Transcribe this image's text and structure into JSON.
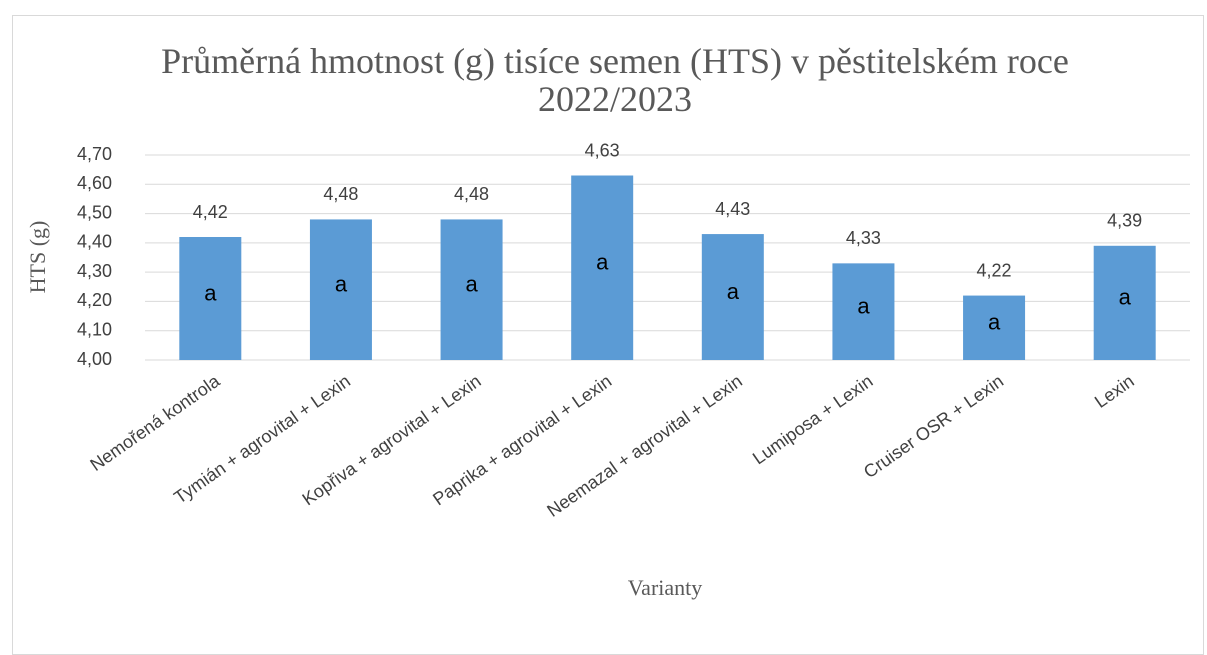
{
  "chart_data": {
    "type": "bar",
    "title": "Průměrná hmotnost (g) tisíce semen (HTS) v pěstitelském roce 2022/2023",
    "x_label": "Varianty",
    "y_label": "HTS (g)",
    "categories": [
      "Nemořená kontrola",
      "Tymián + agrovital + Lexin",
      "Kopřiva + agrovital + Lexin",
      "Paprika + agrovital + Lexin",
      "Neemazal + agrovital + Lexin",
      "Lumiposa + Lexin",
      "Cruiser OSR + Lexin",
      "Lexin"
    ],
    "values": [
      4.42,
      4.48,
      4.48,
      4.63,
      4.43,
      4.33,
      4.22,
      4.39
    ],
    "value_labels": [
      "4,42",
      "4,48",
      "4,48",
      "4,63",
      "4,43",
      "4,33",
      "4,22",
      "4,39"
    ],
    "annotations": [
      "a",
      "a",
      "a",
      "a",
      "a",
      "a",
      "a",
      "a"
    ],
    "color": "#5b9bd5",
    "ylim": [
      4.0,
      4.7
    ],
    "yticks": [
      {
        "value": 4.0,
        "label": "4,00"
      },
      {
        "value": 4.1,
        "label": "4,10"
      },
      {
        "value": 4.2,
        "label": "4,20"
      },
      {
        "value": 4.3,
        "label": "4,30"
      },
      {
        "value": 4.4,
        "label": "4,40"
      },
      {
        "value": 4.5,
        "label": "4,50"
      },
      {
        "value": 4.6,
        "label": "4,60"
      },
      {
        "value": 4.7,
        "label": "4,70"
      }
    ],
    "grid": true
  }
}
